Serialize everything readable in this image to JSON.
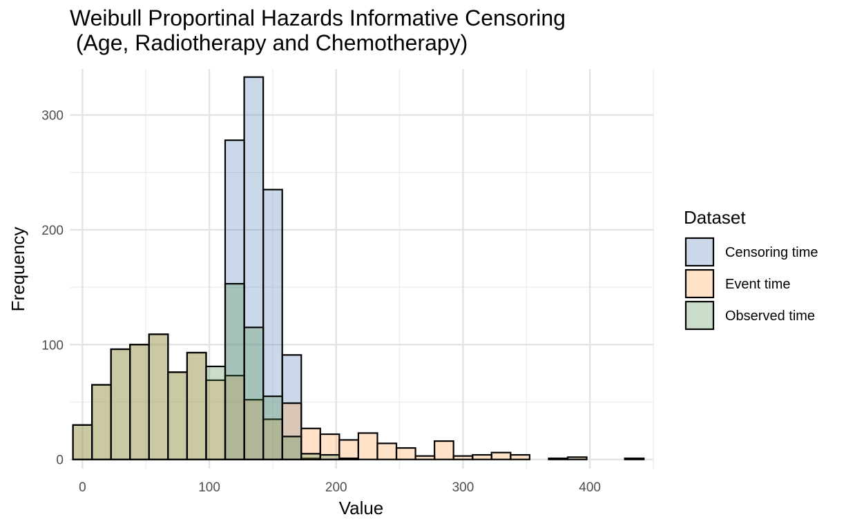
{
  "chart_data": {
    "type": "bar",
    "title": "Weibull Proportinal Hazards Informative Censoring\n (Age, Radiotherapy and Chemotherapy)",
    "xlabel": "Value",
    "ylabel": "Frequency",
    "xlim": [
      -10,
      450
    ],
    "ylim": [
      -8,
      340
    ],
    "xticks": [
      0,
      100,
      200,
      300,
      400
    ],
    "yticks": [
      0,
      100,
      200,
      300
    ],
    "grid": true,
    "bar_opacity": 0.3,
    "bin_width": 15,
    "bin_starts": [
      -7.5,
      7.5,
      22.5,
      37.5,
      52.5,
      67.5,
      82.5,
      97.5,
      112.5,
      127.5,
      142.5,
      157.5,
      172.5,
      187.5,
      202.5,
      217.5,
      232.5,
      247.5,
      262.5,
      277.5,
      292.5,
      307.5,
      322.5,
      337.5,
      352.5,
      367.5,
      382.5,
      397.5,
      412.5,
      427.5
    ],
    "legend": {
      "title": "Dataset",
      "position": "right"
    },
    "series": [
      {
        "name": "Censoring time",
        "color": "#4f7db8",
        "values": [
          0,
          0,
          0,
          0,
          0,
          0,
          0,
          0,
          278,
          333,
          235,
          91,
          1,
          0,
          0,
          0,
          0,
          0,
          0,
          0,
          0,
          0,
          0,
          0,
          0,
          0,
          0,
          0,
          0,
          0
        ]
      },
      {
        "name": "Event time",
        "color": "#ff9f45",
        "values": [
          30,
          65,
          96,
          100,
          109,
          76,
          93,
          69,
          73,
          52,
          35,
          49,
          27,
          22,
          17,
          23,
          14,
          10,
          3,
          16,
          3,
          4,
          6,
          4,
          0,
          1,
          2,
          0,
          0,
          1
        ]
      },
      {
        "name": "Observed time",
        "color": "#4f8f4f",
        "values": [
          30,
          65,
          96,
          100,
          109,
          76,
          93,
          81,
          153,
          115,
          55,
          20,
          5,
          4,
          1,
          0,
          0,
          0,
          0,
          0,
          0,
          0,
          0,
          0,
          0,
          0,
          0,
          0,
          0,
          0
        ]
      }
    ]
  }
}
